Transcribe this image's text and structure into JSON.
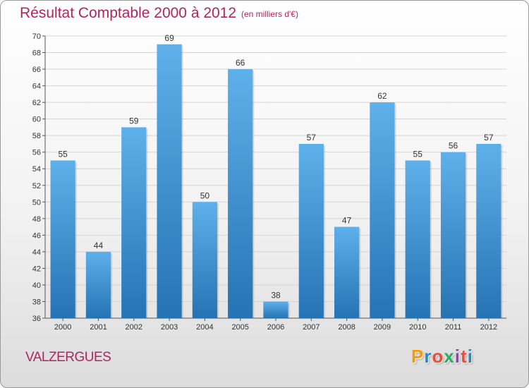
{
  "title": "Résultat Comptable 2000 à 2012",
  "subtitle": "(en milliers d'€)",
  "commune": "VALZERGUES",
  "logo": {
    "letters": [
      "P",
      "r",
      "o",
      "x",
      "i",
      "t",
      "i"
    ],
    "colors": [
      "#f39c12",
      "#2e86c1",
      "#e74c3c",
      "#27ae60",
      "#8e44ad",
      "#e74c3c",
      "#2e86c1"
    ]
  },
  "colors": {
    "bar_top": "#5eb0ea",
    "bar_bottom": "#2673b3",
    "title": "#b3245b",
    "grid": "#d4d4d4"
  },
  "chart_data": {
    "type": "bar",
    "title": "Résultat Comptable 2000 à 2012",
    "subtitle": "(en milliers d'€)",
    "categories": [
      "2000",
      "2001",
      "2002",
      "2003",
      "2004",
      "2005",
      "2006",
      "2007",
      "2008",
      "2009",
      "2010",
      "2011",
      "2012"
    ],
    "values": [
      55,
      44,
      59,
      69,
      50,
      66,
      38,
      57,
      47,
      62,
      55,
      56,
      57
    ],
    "ylim": [
      36,
      70
    ],
    "yticks": [
      36,
      38,
      40,
      42,
      44,
      46,
      48,
      50,
      52,
      54,
      56,
      58,
      60,
      62,
      64,
      66,
      68,
      70
    ],
    "grid": true,
    "data_labels": true
  }
}
